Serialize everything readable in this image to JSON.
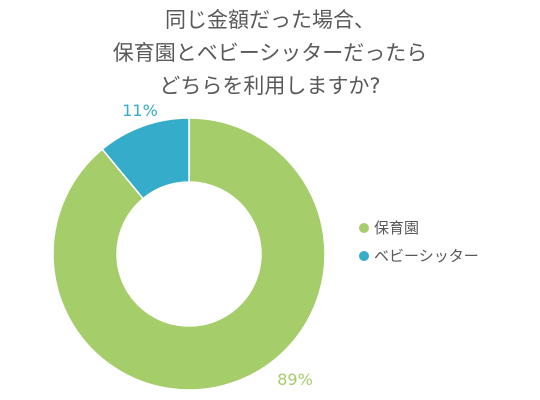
{
  "chart_data": {
    "type": "pie",
    "title_lines": [
      "同じ金額だった場合、",
      "保育園とベビーシッターだったら",
      "どちらを利用しますか?"
    ],
    "series": [
      {
        "name": "保育園",
        "value": 89,
        "label": "89%",
        "color": "#a5cd6a"
      },
      {
        "name": "ベビーシッター",
        "value": 11,
        "label": "11%",
        "color": "#35acc9"
      }
    ],
    "donut": true,
    "legend_position": "right"
  }
}
